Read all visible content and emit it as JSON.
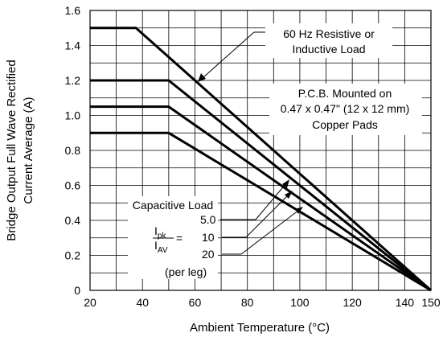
{
  "chart_data": {
    "type": "line",
    "title": "",
    "xlabel": "Ambient Temperature (°C)",
    "ylabel_line1": "Bridge Output Full Wave Rectified",
    "ylabel_line2": "Current Average (A)",
    "xlim": [
      20,
      150
    ],
    "ylim": [
      0,
      1.6
    ],
    "x_ticks": [
      20,
      40,
      60,
      80,
      100,
      120,
      140,
      150
    ],
    "x_tick_labels": [
      "20",
      "40",
      "60",
      "80",
      "100",
      "120",
      "140",
      "150"
    ],
    "y_ticks": [
      0,
      0.2,
      0.4,
      0.6,
      0.8,
      1.0,
      1.2,
      1.4,
      1.6
    ],
    "y_tick_labels": [
      "0",
      "0.2",
      "0.4",
      "0.6",
      "0.8",
      "1.0",
      "1.2",
      "1.4",
      "1.6"
    ],
    "grid": true,
    "grid_minor_x_step": 10,
    "grid_minor_y_step": 0.1,
    "series": [
      {
        "name": "",
        "x": [
          20,
          37.5,
          150
        ],
        "y": [
          1.5,
          1.5,
          0
        ]
      },
      {
        "name": "",
        "x": [
          20,
          50,
          150
        ],
        "y": [
          1.2,
          1.2,
          0
        ]
      },
      {
        "name": "",
        "x": [
          20,
          50,
          150
        ],
        "y": [
          1.05,
          1.05,
          0
        ]
      },
      {
        "name": "",
        "x": [
          20,
          50,
          150
        ],
        "y": [
          0.9,
          0.9,
          0
        ]
      }
    ],
    "annotations": {
      "resistive_line1": "60 Hz Resistive or",
      "resistive_line2": "Inductive Load",
      "pcb_line1": "P.C.B. Mounted on",
      "pcb_line2": "0.47 x 0.47\" (12 x 12 mm)",
      "pcb_line3": "Copper Pads",
      "capacitive_title": "Capacitive Load",
      "ratio_num_base": "I",
      "ratio_num_sub": "pk",
      "ratio_den_base": "I",
      "ratio_den_sub": "AV",
      "ratio_equals": "=",
      "ratio_values": [
        "5.0",
        "10",
        "20"
      ],
      "per_leg": "(per leg)"
    }
  }
}
